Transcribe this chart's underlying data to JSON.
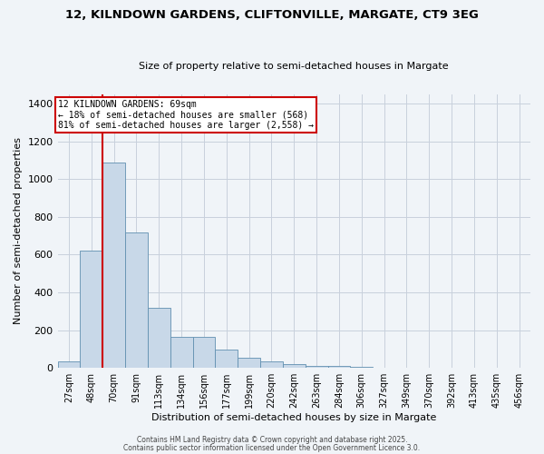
{
  "title1": "12, KILNDOWN GARDENS, CLIFTONVILLE, MARGATE, CT9 3EG",
  "title2": "Size of property relative to semi-detached houses in Margate",
  "xlabel": "Distribution of semi-detached houses by size in Margate",
  "ylabel": "Number of semi-detached properties",
  "categories": [
    "27sqm",
    "48sqm",
    "70sqm",
    "91sqm",
    "113sqm",
    "134sqm",
    "156sqm",
    "177sqm",
    "199sqm",
    "220sqm",
    "242sqm",
    "263sqm",
    "284sqm",
    "306sqm",
    "327sqm",
    "349sqm",
    "370sqm",
    "392sqm",
    "413sqm",
    "435sqm",
    "456sqm"
  ],
  "values": [
    35,
    620,
    1090,
    720,
    320,
    165,
    165,
    95,
    55,
    35,
    20,
    10,
    10,
    5,
    2,
    2,
    2,
    1,
    1,
    1,
    1
  ],
  "bar_color": "#c8d8e8",
  "bar_edge_color": "#6090b0",
  "grid_color": "#c8d0dc",
  "property_size_index": 2,
  "annotation_title": "12 KILNDOWN GARDENS: 69sqm",
  "annotation_line1": "← 18% of semi-detached houses are smaller (568)",
  "annotation_line2": "81% of semi-detached houses are larger (2,558) →",
  "annotation_box_color": "#ffffff",
  "annotation_border_color": "#cc0000",
  "vline_color": "#cc0000",
  "ylim": [
    0,
    1450
  ],
  "yticks": [
    0,
    200,
    400,
    600,
    800,
    1000,
    1200,
    1400
  ],
  "footer1": "Contains HM Land Registry data © Crown copyright and database right 2025.",
  "footer2": "Contains public sector information licensed under the Open Government Licence 3.0."
}
